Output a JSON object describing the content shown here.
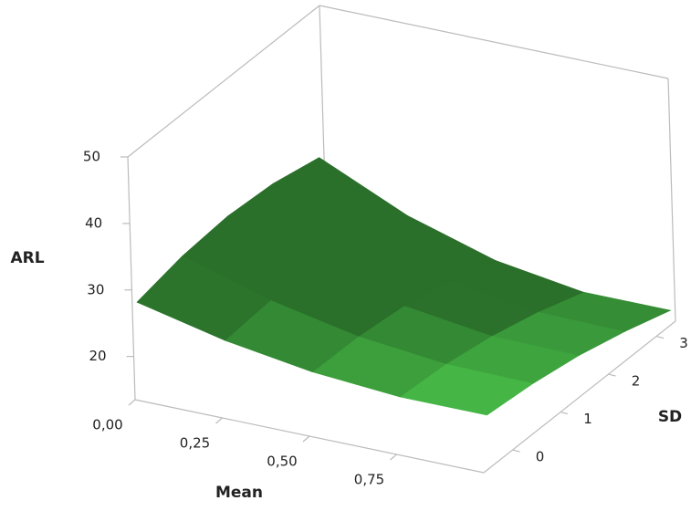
{
  "chart_data": {
    "type": "surface",
    "x_label": "Mean",
    "y_label": "SD",
    "z_label": "ARL",
    "x": [
      0,
      0.25,
      0.5,
      0.75,
      1
    ],
    "y": [
      -0.5,
      0.45,
      1.4,
      2.35,
      3.3
    ],
    "z": [
      [
        27.6,
        24.6,
        22.6,
        21.6,
        21.6
      ],
      [
        29.1,
        25.2,
        22.5,
        21.1,
        20.9
      ],
      [
        29.7,
        24.9,
        21.7,
        19.9,
        19.7
      ],
      [
        29.2,
        23.7,
        20.1,
        18.1,
        17.9
      ],
      [
        27.7,
        21.7,
        17.7,
        15.7,
        15.7
      ]
    ],
    "color": "#5aa55a",
    "xlim": [
      0,
      1
    ],
    "xticks": [
      {
        "value": 0,
        "label": "0,00"
      },
      {
        "value": 0.25,
        "label": "0,25"
      },
      {
        "value": 0.5,
        "label": "0,50"
      },
      {
        "value": 0.75,
        "label": "0,75"
      }
    ],
    "ylim": [
      -0.6,
      3.4
    ],
    "yticks": [
      0,
      1,
      2,
      3
    ],
    "zlim": [
      13.5,
      50
    ],
    "zticks": [
      20,
      30,
      40,
      50
    ]
  }
}
